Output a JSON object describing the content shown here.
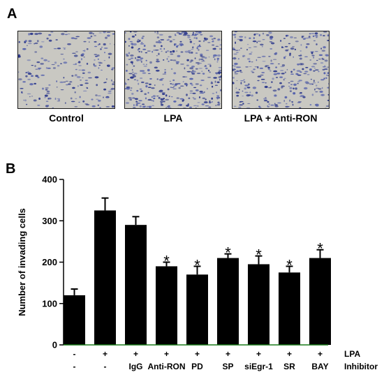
{
  "panel_a": {
    "label": "A",
    "images": [
      {
        "caption": "Control",
        "density": 0.55
      },
      {
        "caption": "LPA",
        "density": 1.0
      },
      {
        "caption": "LPA + Anti-RON",
        "density": 0.8
      }
    ]
  },
  "panel_b": {
    "label": "B"
  },
  "colors": {
    "bar": "#000000",
    "axis": "#000000",
    "baseline": "#1a7a1a",
    "micro_background": "#c9c8c2",
    "cell_dark": "#2e3a8c",
    "cell_light": "#5864ad"
  },
  "chart_data": {
    "type": "bar",
    "title": "",
    "ylabel": "Number of invading cells",
    "xlabel": "",
    "ylim": [
      0,
      400
    ],
    "yticks": [
      0,
      100,
      200,
      300,
      400
    ],
    "series": [
      {
        "values": [
          120,
          325,
          290,
          190,
          170,
          210,
          195,
          175,
          210
        ],
        "errors": [
          15,
          30,
          20,
          10,
          20,
          10,
          20,
          15,
          20
        ],
        "significance": [
          "",
          "",
          "",
          "*",
          "*",
          "*",
          "*",
          "*",
          "*"
        ]
      }
    ],
    "row_labels": [
      {
        "name": "LPA",
        "values": [
          "-",
          "+",
          "+",
          "+",
          "+",
          "+",
          "+",
          "+",
          "+"
        ]
      },
      {
        "name": "Inhibitor",
        "values": [
          "-",
          "-",
          "IgG",
          "Anti-RON",
          "PD",
          "SP",
          "siEgr-1",
          "SR",
          "BAY"
        ]
      }
    ]
  }
}
